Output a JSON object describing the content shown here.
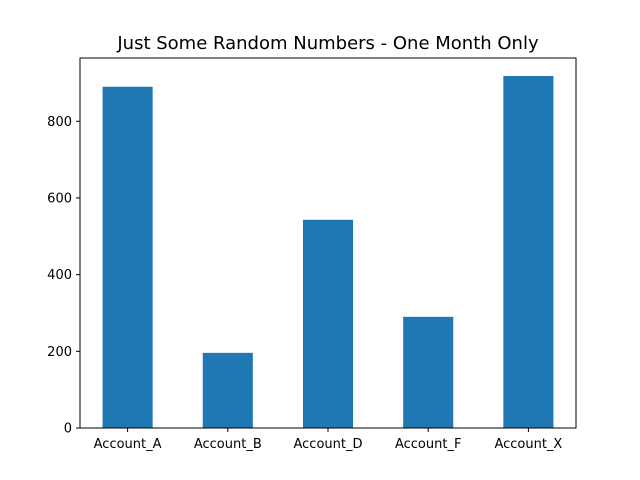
{
  "chart_data": {
    "type": "bar",
    "title": "Just Some Random Numbers - One Month Only",
    "xlabel": "",
    "ylabel": "",
    "categories": [
      "Account_A",
      "Account_B",
      "Account_D",
      "Account_F",
      "Account_X"
    ],
    "values": [
      890,
      196,
      543,
      290,
      918
    ],
    "ylim": [
      0,
      965
    ],
    "yticks": [
      0,
      200,
      400,
      600,
      800
    ],
    "grid": false,
    "bar_color": "#1f77b4"
  }
}
